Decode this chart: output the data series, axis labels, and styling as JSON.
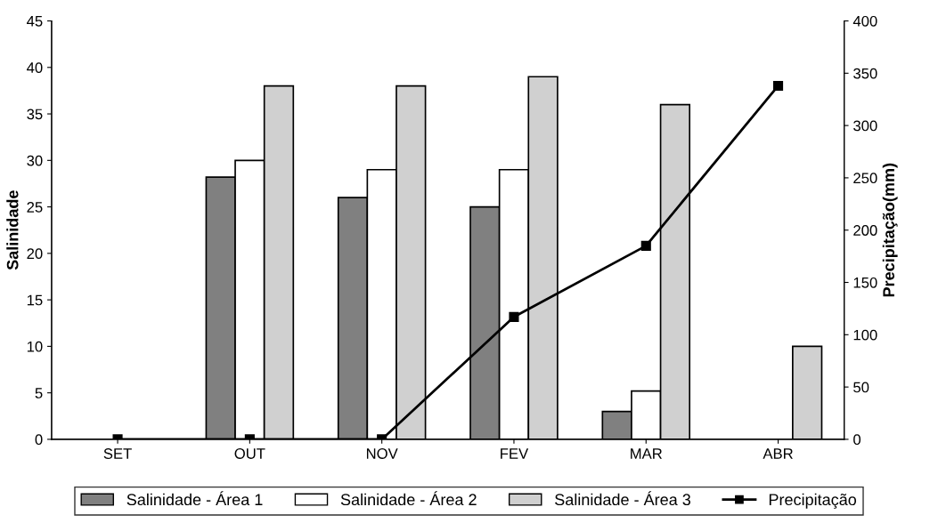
{
  "chart_data": {
    "type": "bar",
    "ylabel": "Salinidade",
    "y2label": "Precipitação(mm)",
    "categories": [
      "SET",
      "OUT",
      "NOV",
      "FEV",
      "MAR",
      "ABR"
    ],
    "series": [
      {
        "name": "Salinidade - Área 1",
        "color": "#808080",
        "values": [
          null,
          28.2,
          26,
          25,
          3,
          null
        ]
      },
      {
        "name": "Salinidade - Área 2",
        "color": "#ffffff",
        "values": [
          null,
          30,
          29,
          29,
          5.2,
          null
        ]
      },
      {
        "name": "Salinidade - Área 3",
        "color": "#d0d0d0",
        "values": [
          null,
          38,
          38,
          39,
          36,
          10
        ]
      },
      {
        "name": "Precipitação",
        "type": "line",
        "axis": "y2",
        "color": "#000000",
        "marker": "square",
        "values": [
          0,
          0,
          0,
          117,
          185,
          338
        ]
      }
    ],
    "ylim": [
      0,
      45
    ],
    "yticks": [
      0,
      5,
      10,
      15,
      20,
      25,
      30,
      35,
      40,
      45
    ],
    "y2lim": [
      0,
      400
    ],
    "y2ticks": [
      0,
      50,
      100,
      150,
      200,
      250,
      300,
      350,
      400
    ],
    "legend": "bottom",
    "grid": false
  }
}
